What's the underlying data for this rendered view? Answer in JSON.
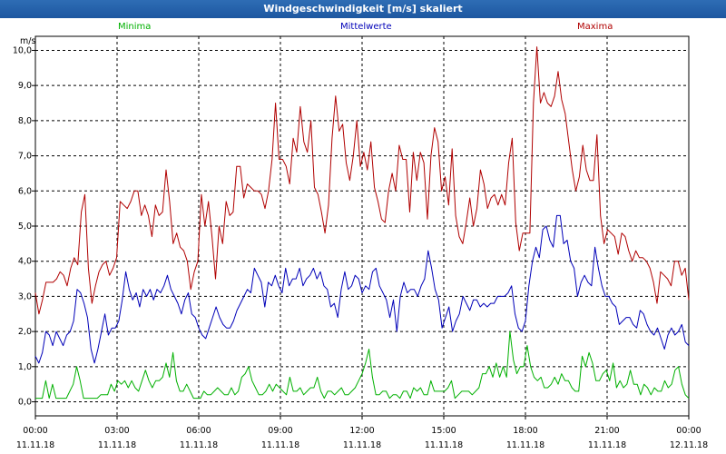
{
  "window": {
    "title": "Windgeschwindigkeit [m/s] skaliert"
  },
  "colors": {
    "minima": "#00b000",
    "mittel": "#0000b8",
    "maxima": "#b00000",
    "grid": "#000000"
  },
  "chart_data": {
    "type": "line",
    "title": "Windgeschwindigkeit [m/s] skaliert",
    "ylabel": "m/s",
    "ylim": [
      -0.4,
      10.4
    ],
    "yticks": [
      "0,0",
      "1,0",
      "2,0",
      "3,0",
      "4,0",
      "5,0",
      "6,0",
      "7,0",
      "8,0",
      "9,0",
      "10,0"
    ],
    "xlim_hours": [
      0,
      24
    ],
    "xticks": [
      {
        "time": "00:00",
        "date": "11.11.18"
      },
      {
        "time": "03:00",
        "date": "11.11.18"
      },
      {
        "time": "06:00",
        "date": "11.11.18"
      },
      {
        "time": "09:00",
        "date": "11.11.18"
      },
      {
        "time": "12:00",
        "date": "11.11.18"
      },
      {
        "time": "15:00",
        "date": "11.11.18"
      },
      {
        "time": "18:00",
        "date": "11.11.18"
      },
      {
        "time": "21:00",
        "date": "11.11.18"
      },
      {
        "time": "00:00",
        "date": "12.11.18"
      }
    ],
    "series": [
      {
        "name": "Minima",
        "color": "#00b000",
        "values": [
          0.1,
          0.1,
          0.1,
          0.6,
          0.1,
          0.5,
          0.1,
          0.1,
          0.1,
          0.1,
          0.3,
          0.5,
          1.0,
          0.6,
          0.1,
          0.1,
          0.1,
          0.1,
          0.1,
          0.2,
          0.2,
          0.2,
          0.5,
          0.3,
          0.6,
          0.5,
          0.6,
          0.4,
          0.6,
          0.4,
          0.3,
          0.6,
          0.9,
          0.6,
          0.4,
          0.6,
          0.6,
          0.7,
          1.1,
          0.7,
          1.4,
          0.6,
          0.3,
          0.3,
          0.5,
          0.3,
          0.1,
          0.1,
          0.1,
          0.3,
          0.2,
          0.2,
          0.3,
          0.4,
          0.3,
          0.2,
          0.2,
          0.4,
          0.2,
          0.3,
          0.7,
          0.8,
          1.0,
          0.6,
          0.4,
          0.2,
          0.2,
          0.3,
          0.5,
          0.3,
          0.5,
          0.4,
          0.3,
          0.2,
          0.7,
          0.3,
          0.3,
          0.4,
          0.2,
          0.3,
          0.4,
          0.4,
          0.7,
          0.3,
          0.1,
          0.3,
          0.3,
          0.2,
          0.3,
          0.4,
          0.2,
          0.2,
          0.3,
          0.4,
          0.6,
          0.8,
          1.1,
          1.5,
          0.7,
          0.2,
          0.2,
          0.3,
          0.3,
          0.1,
          0.2,
          0.2,
          0.1,
          0.3,
          0.3,
          0.1,
          0.4,
          0.3,
          0.4,
          0.2,
          0.2,
          0.6,
          0.3,
          0.3,
          0.3,
          0.3,
          0.4,
          0.6,
          0.1,
          0.2,
          0.3,
          0.3,
          0.3,
          0.2,
          0.3,
          0.4,
          0.8,
          0.8,
          1.0,
          0.7,
          1.1,
          0.7,
          1.0,
          0.7,
          2.0,
          1.2,
          0.8,
          1.0,
          1.0,
          1.6,
          1.0,
          0.7,
          0.6,
          0.7,
          0.4,
          0.4,
          0.5,
          0.7,
          0.5,
          0.8,
          0.6,
          0.6,
          0.4,
          0.3,
          0.3,
          1.3,
          1.0,
          1.4,
          1.1,
          0.6,
          0.6,
          0.8,
          0.9,
          0.6,
          1.1,
          0.4,
          0.6,
          0.4,
          0.5,
          0.9,
          0.5,
          0.5,
          0.2,
          0.5,
          0.4,
          0.2,
          0.4,
          0.3,
          0.3,
          0.6,
          0.4,
          0.5,
          0.9,
          1.0,
          0.5,
          0.2,
          0.1
        ]
      },
      {
        "name": "Mittelwerte",
        "color": "#0000b8",
        "values": [
          1.3,
          1.1,
          1.4,
          2.0,
          1.9,
          1.6,
          2.0,
          1.8,
          1.6,
          1.9,
          2.0,
          2.3,
          3.2,
          3.1,
          2.8,
          2.4,
          1.5,
          1.1,
          1.5,
          2.0,
          2.5,
          1.9,
          2.1,
          2.1,
          2.3,
          2.9,
          3.7,
          3.2,
          2.9,
          3.1,
          2.7,
          3.2,
          3.0,
          3.2,
          2.9,
          3.2,
          3.1,
          3.3,
          3.6,
          3.2,
          3.0,
          2.8,
          2.5,
          2.9,
          3.1,
          2.5,
          2.4,
          2.1,
          1.9,
          1.8,
          2.1,
          2.4,
          2.7,
          2.4,
          2.2,
          2.1,
          2.1,
          2.3,
          2.6,
          2.8,
          3.0,
          3.2,
          3.1,
          3.8,
          3.6,
          3.4,
          2.7,
          3.4,
          3.3,
          3.6,
          3.3,
          3.1,
          3.8,
          3.3,
          3.5,
          3.5,
          3.8,
          3.3,
          3.5,
          3.6,
          3.8,
          3.5,
          3.7,
          3.3,
          3.2,
          2.7,
          2.8,
          2.4,
          3.2,
          3.7,
          3.2,
          3.3,
          3.6,
          3.5,
          3.1,
          3.3,
          3.2,
          3.7,
          3.8,
          3.3,
          3.1,
          2.9,
          2.4,
          2.9,
          2.0,
          3.0,
          3.4,
          3.1,
          3.2,
          3.2,
          3.0,
          3.3,
          3.5,
          4.3,
          3.8,
          3.2,
          2.9,
          2.1,
          2.4,
          2.7,
          2.0,
          2.3,
          2.5,
          3.0,
          2.8,
          2.6,
          2.9,
          2.9,
          2.7,
          2.8,
          2.7,
          2.8,
          2.8,
          3.0,
          3.0,
          3.0,
          3.1,
          3.3,
          2.5,
          2.1,
          2.0,
          2.3,
          3.3,
          4.0,
          4.4,
          4.1,
          4.9,
          5.0,
          4.6,
          4.4,
          5.3,
          5.3,
          4.5,
          4.6,
          4.0,
          3.8,
          3.0,
          3.4,
          3.6,
          3.4,
          3.3,
          4.4,
          3.8,
          3.3,
          3.0,
          3.0,
          2.8,
          2.7,
          2.2,
          2.3,
          2.4,
          2.4,
          2.2,
          2.1,
          2.6,
          2.5,
          2.2,
          2.0,
          1.9,
          2.1,
          1.8,
          1.5,
          1.9,
          2.1,
          1.9,
          2.0,
          2.2,
          1.7,
          1.6
        ]
      },
      {
        "name": "Maxima",
        "color": "#b00000",
        "values": [
          3.1,
          2.5,
          2.9,
          3.4,
          3.4,
          3.4,
          3.5,
          3.7,
          3.6,
          3.3,
          3.8,
          4.1,
          3.9,
          5.4,
          5.9,
          3.8,
          2.8,
          3.3,
          3.7,
          3.9,
          4.0,
          3.6,
          3.8,
          4.1,
          5.7,
          5.6,
          5.5,
          5.7,
          6.0,
          6.0,
          5.3,
          5.6,
          5.3,
          4.7,
          5.6,
          5.3,
          5.4,
          6.6,
          5.7,
          4.5,
          4.8,
          4.4,
          4.3,
          4.0,
          3.2,
          3.7,
          4.0,
          5.9,
          5.0,
          5.7,
          4.7,
          3.5,
          5.0,
          4.5,
          5.7,
          5.3,
          5.4,
          6.7,
          6.7,
          5.8,
          6.2,
          6.1,
          6.0,
          6.0,
          5.9,
          5.5,
          6.0,
          6.9,
          8.5,
          6.9,
          6.9,
          6.7,
          6.2,
          7.5,
          7.1,
          8.4,
          7.4,
          7.1,
          8.0,
          6.1,
          5.9,
          5.4,
          4.8,
          5.6,
          7.5,
          8.7,
          7.7,
          7.9,
          6.8,
          6.3,
          7.0,
          8.0,
          6.7,
          7.1,
          6.6,
          7.4,
          6.1,
          5.7,
          5.2,
          5.1,
          6.0,
          6.5,
          6.0,
          7.3,
          6.9,
          6.9,
          5.4,
          7.1,
          6.3,
          7.1,
          6.8,
          5.2,
          7.0,
          7.8,
          7.4,
          6.0,
          6.4,
          5.6,
          7.2,
          5.3,
          4.7,
          4.5,
          5.1,
          5.8,
          5.0,
          5.5,
          6.6,
          6.2,
          5.5,
          5.8,
          5.9,
          5.6,
          5.9,
          5.6,
          6.8,
          7.5,
          5.1,
          4.3,
          4.8,
          4.8,
          4.8,
          8.5,
          10.1,
          8.5,
          8.8,
          8.5,
          8.4,
          8.7,
          9.4,
          8.6,
          8.2,
          7.4,
          6.6,
          6.0,
          6.4,
          7.3,
          6.6,
          6.3,
          6.3,
          7.6,
          5.3,
          4.5,
          4.9,
          4.8,
          4.7,
          4.2,
          4.8,
          4.7,
          4.3,
          4.0,
          4.3,
          4.1,
          4.1,
          4.0,
          3.8,
          3.4,
          2.8,
          3.7,
          3.6,
          3.5,
          3.3,
          4.0,
          4.0,
          3.6,
          3.8,
          2.9
        ]
      }
    ]
  }
}
